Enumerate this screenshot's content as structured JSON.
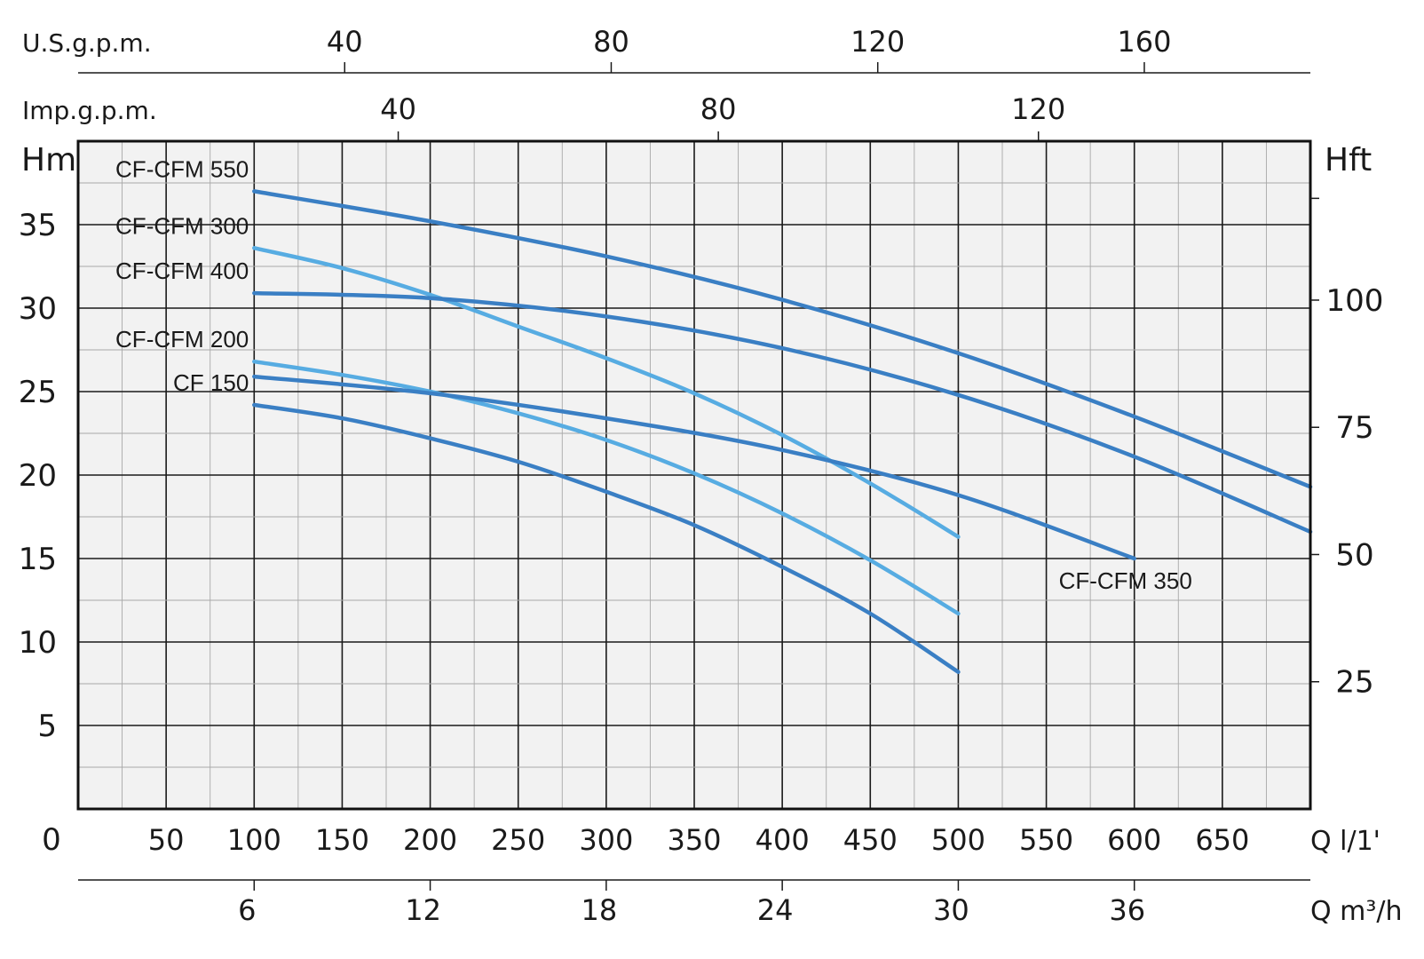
{
  "chart_data": {
    "type": "line",
    "x_axis": {
      "unit_label": "Q l/1'",
      "range": [
        0,
        700
      ],
      "ticks": [
        0,
        50,
        100,
        150,
        200,
        250,
        300,
        350,
        400,
        450,
        500,
        550,
        600,
        650
      ],
      "tick_labels": [
        "0",
        "50",
        "100",
        "150",
        "200",
        "250",
        "300",
        "350",
        "400",
        "450",
        "500",
        "550",
        "600",
        "650"
      ]
    },
    "x_axis_m3h": {
      "unit_label": "Q m³/h",
      "ticks": [
        6,
        12,
        18,
        24,
        30,
        36
      ],
      "tick_labels": [
        "6",
        "12",
        "18",
        "24",
        "30",
        "36"
      ]
    },
    "top_axis_us": {
      "unit_label": "U.S.g.p.m.",
      "ticks": [
        40,
        80,
        120,
        160
      ],
      "tick_labels": [
        "40",
        "80",
        "120",
        "160"
      ]
    },
    "top_axis_imp": {
      "unit_label": "Imp.g.p.m.",
      "ticks": [
        40,
        80,
        120
      ],
      "tick_labels": [
        "40",
        "80",
        "120"
      ]
    },
    "y_axis_left": {
      "unit_label": "Hm",
      "range": [
        0,
        40
      ],
      "ticks": [
        5,
        10,
        15,
        20,
        25,
        30,
        35
      ],
      "tick_labels": [
        "5",
        "10",
        "15",
        "20",
        "25",
        "30",
        "35"
      ]
    },
    "y_axis_right": {
      "unit_label": "Hft",
      "ticks": [
        25,
        50,
        75,
        100
      ],
      "tick_labels": [
        "25",
        "50",
        "75",
        "100"
      ]
    },
    "grid": true,
    "series": [
      {
        "name": "CF-CFM 550",
        "color": "#3a7fc4",
        "x": [
          100,
          200,
          300,
          400,
          500,
          600,
          700
        ],
        "y": [
          37.0,
          35.2,
          33.1,
          30.5,
          27.3,
          23.5,
          19.3
        ]
      },
      {
        "name": "CF-CFM 300",
        "color": "#57ace2",
        "x": [
          100,
          150,
          200,
          250,
          300,
          350,
          400,
          450,
          500
        ],
        "y": [
          33.6,
          32.4,
          30.8,
          28.9,
          27.0,
          24.9,
          22.4,
          19.5,
          16.3
        ]
      },
      {
        "name": "CF-CFM 400",
        "color": "#3a7fc4",
        "x": [
          100,
          200,
          300,
          400,
          500,
          600,
          700
        ],
        "y": [
          30.9,
          30.6,
          29.5,
          27.6,
          24.8,
          21.1,
          16.6
        ]
      },
      {
        "name": "CF-CFM 200",
        "color": "#57ace2",
        "x": [
          100,
          150,
          200,
          250,
          300,
          350,
          400,
          450,
          500
        ],
        "y": [
          26.8,
          26.0,
          25.0,
          23.7,
          22.1,
          20.1,
          17.7,
          14.9,
          11.7
        ]
      },
      {
        "name": "CF-CFM 350",
        "color": "#3a7fc4",
        "x": [
          100,
          200,
          300,
          400,
          500,
          600
        ],
        "y": [
          25.9,
          24.9,
          23.4,
          21.5,
          18.8,
          15.0
        ]
      },
      {
        "name": "CF 150",
        "color": "#3a7fc4",
        "x": [
          100,
          150,
          200,
          250,
          300,
          350,
          400,
          450,
          500
        ],
        "y": [
          24.2,
          23.4,
          22.2,
          20.8,
          19.0,
          17.0,
          14.5,
          11.7,
          8.2
        ]
      }
    ]
  }
}
